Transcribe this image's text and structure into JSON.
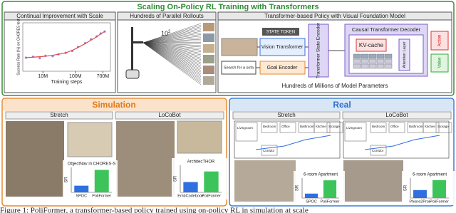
{
  "header": {
    "title": "Scaling On-Policy RL Training with Transformers"
  },
  "scale_panel": {
    "title": "Continual Improvement with Scale",
    "chart_data": {
      "type": "scatter",
      "x_label": "Training steps",
      "y_label": "Success Rate (%) on CHORES test",
      "x": [
        3000000,
        5000000,
        8000000,
        12000000,
        20000000,
        30000000,
        50000000,
        80000000,
        120000000,
        200000000,
        300000000,
        450000000,
        600000000,
        800000000
      ],
      "series": [
        {
          "color": "#a97fd6",
          "values": [
            28,
            30,
            27,
            32,
            31,
            35,
            38,
            42,
            50,
            58,
            66,
            72,
            78,
            82
          ]
        },
        {
          "color": "#e04848",
          "values": [
            28,
            29,
            30,
            31,
            33,
            35,
            38,
            43,
            49,
            57,
            64,
            71,
            77,
            82
          ]
        }
      ],
      "xscale": "log",
      "xlim": [
        2400000,
        1200000000
      ],
      "xticks": [
        {
          "value": 10000000,
          "label": "10M"
        },
        {
          "value": 100000000,
          "label": "100M"
        },
        {
          "value": 700000000,
          "label": "700M"
        }
      ],
      "ylim": [
        0,
        100
      ]
    }
  },
  "rollout_panel": {
    "title": "Hundreds of Parallel Rollouts",
    "count": {
      "base": "10",
      "exp": "2"
    }
  },
  "policy_panel": {
    "title": "Transformer-based Policy with Visual Foundation Model",
    "state_token": "STATE TOKEN",
    "vision": "Vision Transformer",
    "goal_text": "Search for a sofa",
    "goal_encoder": "Goal Encoder",
    "state_encoder": "Transformer State Encoder",
    "decoder": "Causal Transformer Decoder",
    "kv_cache": "KV-cache",
    "attention": "Attention Layer",
    "action": "Action",
    "value": "Value",
    "caption": "Hundreds of Millions of Model Parameters"
  },
  "simulation": {
    "title": "Simulation",
    "stretch": {
      "title": "Stretch",
      "chart_data": {
        "type": "bar",
        "title": "ObjectNav in CHORES-S",
        "y_label": "SR",
        "categories": [
          "SPOC",
          "PoliFormer"
        ],
        "values": [
          57,
          85.5
        ],
        "colors": [
          "#2f6fe0",
          "#3cc45a"
        ],
        "ylim": [
          45,
          90
        ]
      }
    },
    "locobot": {
      "title": "LoCoBot",
      "chart_data": {
        "type": "bar",
        "title": "ArchitecTHOR",
        "y_label": "SR",
        "categories": [
          "EmbCodebook",
          "PoliFormer"
        ],
        "values": [
          58.3,
          72
        ],
        "colors": [
          "#2f6fe0",
          "#3cc45a"
        ],
        "ylim": [
          45,
          80
        ]
      }
    }
  },
  "real": {
    "title": "Real",
    "stretch": {
      "title": "Stretch",
      "rooms": [
        "Livingroom",
        "Bedroom",
        "Office",
        "Bathroom",
        "Kitchen",
        "Storage",
        "Corridor"
      ],
      "chart_data": {
        "type": "bar",
        "title": "6-room Apartment",
        "y_label": "SR",
        "categories": [
          "SPOC",
          "PoliFormer"
        ],
        "values": [
          50,
          80
        ],
        "colors": [
          "#2f6fe0",
          "#3cc45a"
        ],
        "ylim": [
          40,
          85
        ]
      }
    },
    "locobot": {
      "title": "LoCoBot",
      "rooms": [
        "Livingroom",
        "Bedroom",
        "Office",
        "Bathroom",
        "Kitchen",
        "Storage",
        "Corridor"
      ],
      "chart_data": {
        "type": "bar",
        "title": "6-room Apartment",
        "y_label": "SR",
        "categories": [
          "Phone2Proc",
          "PoliFormer"
        ],
        "values": [
          60,
          85
        ],
        "colors": [
          "#2f6fe0",
          "#3cc45a"
        ],
        "ylim": [
          40,
          90
        ]
      }
    }
  },
  "caption": "Figure 1: PoliFormer, a transformer-based policy trained using on-policy RL in simulation at scale"
}
